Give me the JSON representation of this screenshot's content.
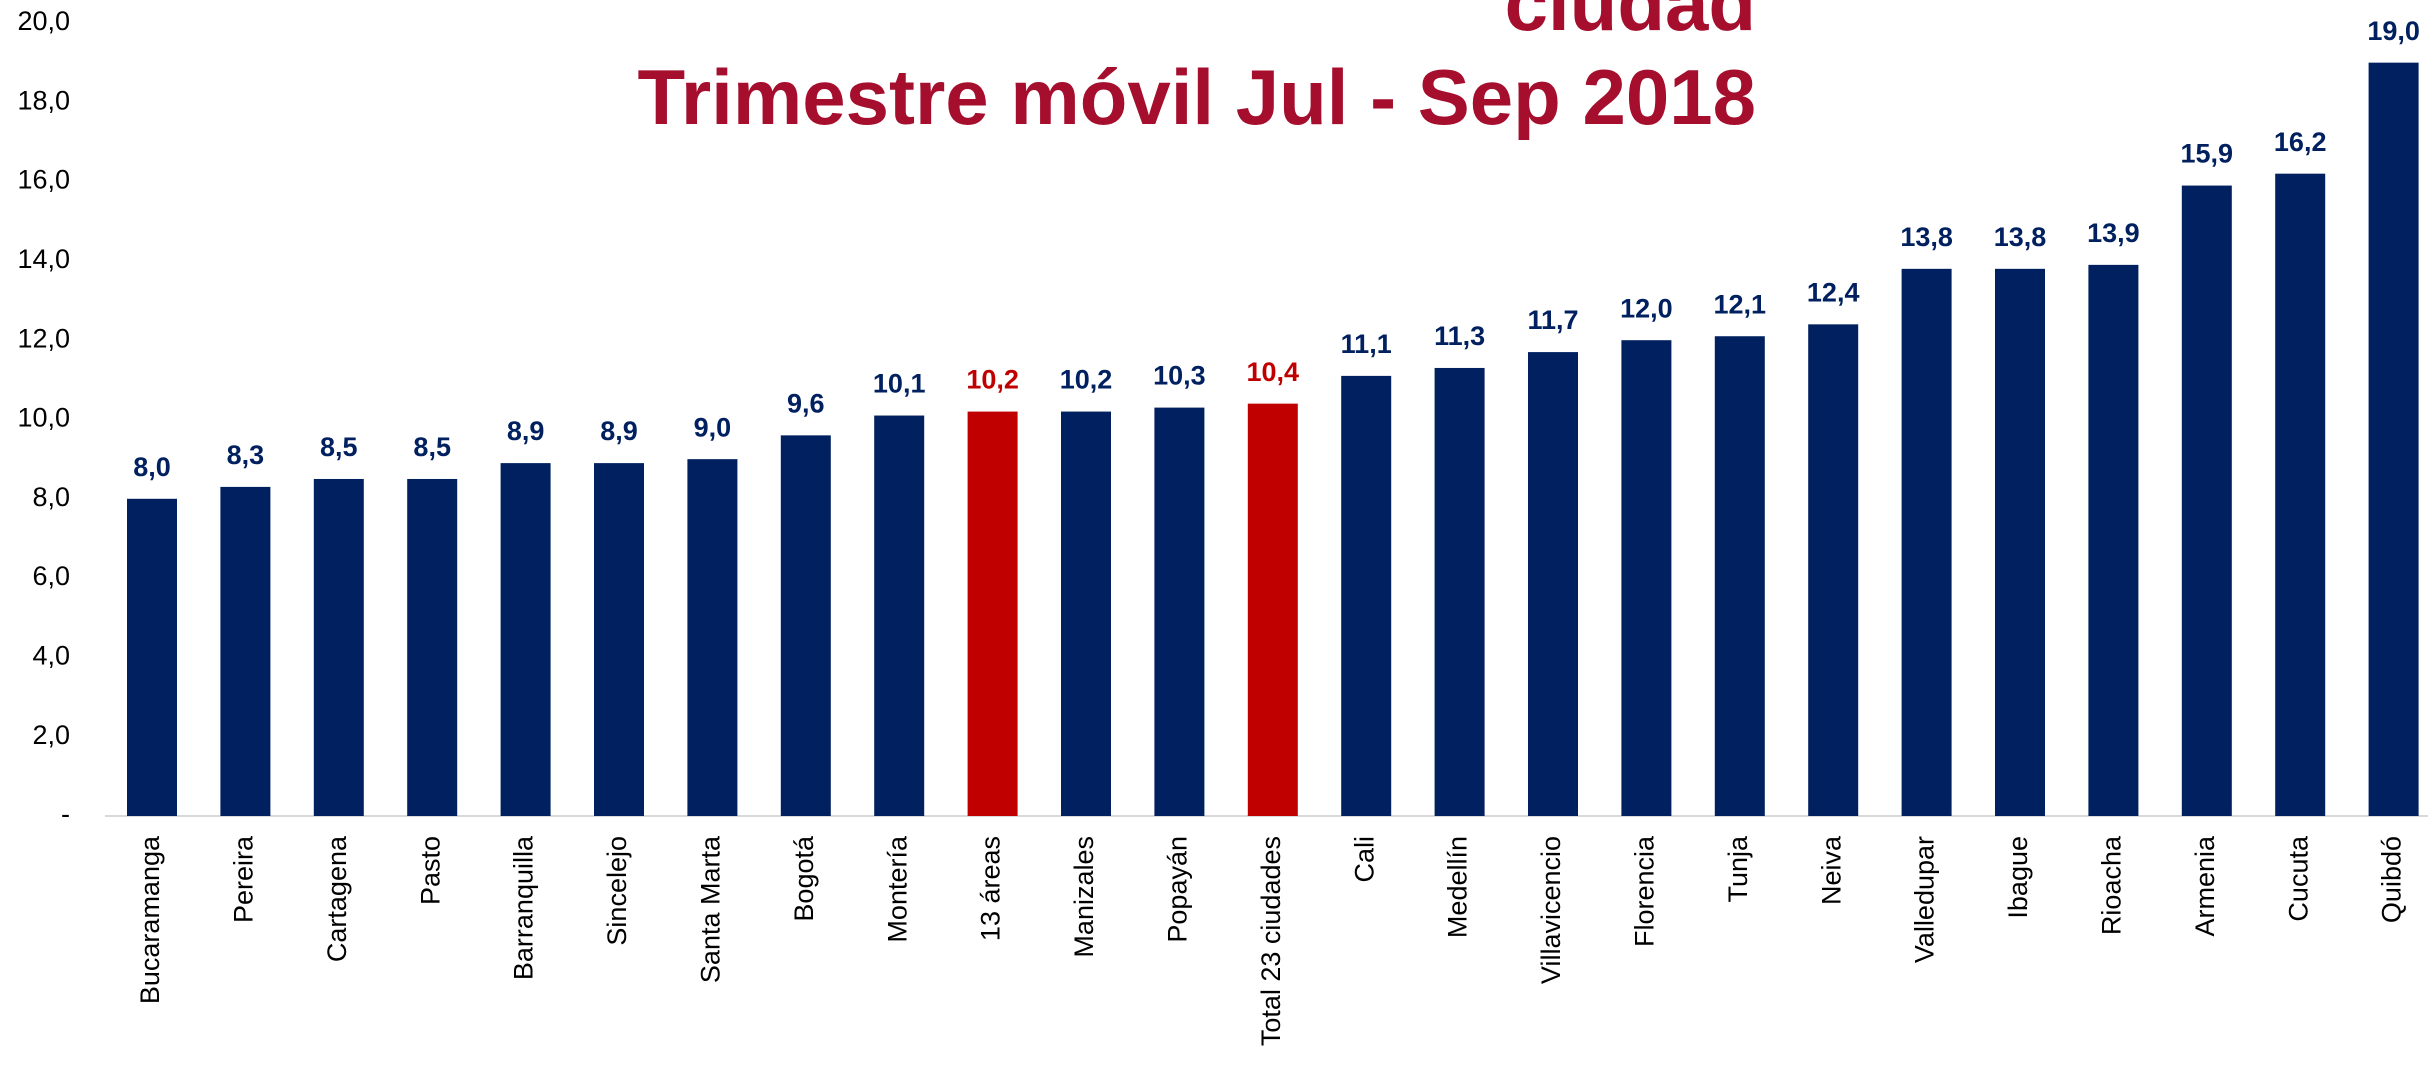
{
  "chart_data": {
    "type": "bar",
    "title": [
      "ciudad",
      "Trimestre móvil Jul - Sep 2018"
    ],
    "categories": [
      "Bucaramanga",
      "Pereira",
      "Cartagena",
      "Pasto",
      "Barranquilla",
      "Sincelejo",
      "Santa Marta",
      "Bogotá",
      "Montería",
      "13 áreas",
      "Manizales",
      "Popayán",
      "Total 23 ciudades",
      "Cali",
      "Medellín",
      "Villavicencio",
      "Florencia",
      "Tunja",
      "Neiva",
      "Valledupar",
      "Ibague",
      "Rioacha",
      "Armenia",
      "Cucuta",
      "Quibdó"
    ],
    "values": [
      8.0,
      8.3,
      8.5,
      8.5,
      8.9,
      8.9,
      9.0,
      9.6,
      10.1,
      10.2,
      10.2,
      10.3,
      10.4,
      11.1,
      11.3,
      11.7,
      12.0,
      12.1,
      12.4,
      13.8,
      13.8,
      13.9,
      15.9,
      16.2,
      19.0
    ],
    "value_labels": [
      "8,0",
      "8,3",
      "8,5",
      "8,5",
      "8,9",
      "8,9",
      "9,0",
      "9,6",
      "10,1",
      "10,2",
      "10,2",
      "10,3",
      "10,4",
      "11,1",
      "11,3",
      "11,7",
      "12,0",
      "12,1",
      "12,4",
      "13,8",
      "13,8",
      "13,9",
      "15,9",
      "16,2",
      "19,0"
    ],
    "colors": [
      "#002060",
      "#002060",
      "#002060",
      "#002060",
      "#002060",
      "#002060",
      "#002060",
      "#002060",
      "#002060",
      "#c00000",
      "#002060",
      "#002060",
      "#c00000",
      "#002060",
      "#002060",
      "#002060",
      "#002060",
      "#002060",
      "#002060",
      "#002060",
      "#002060",
      "#002060",
      "#002060",
      "#002060",
      "#002060"
    ],
    "ylim": [
      0,
      20
    ],
    "yticks": [
      {
        "value": 0,
        "label": "-"
      },
      {
        "value": 2,
        "label": "2,0"
      },
      {
        "value": 4,
        "label": "4,0"
      },
      {
        "value": 6,
        "label": "6,0"
      },
      {
        "value": 8,
        "label": "8,0"
      },
      {
        "value": 10,
        "label": "10,0"
      },
      {
        "value": 12,
        "label": "12,0"
      },
      {
        "value": 14,
        "label": "14,0"
      },
      {
        "value": 16,
        "label": "16,0"
      },
      {
        "value": 18,
        "label": "18,0"
      },
      {
        "value": 20,
        "label": "20,0"
      }
    ],
    "grid": false
  }
}
